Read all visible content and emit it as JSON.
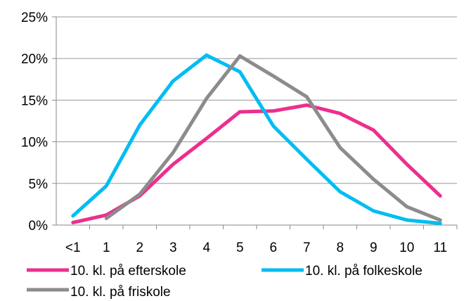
{
  "chart_data": {
    "type": "line",
    "categories": [
      "<1",
      "1",
      "2",
      "3",
      "4",
      "5",
      "6",
      "7",
      "8",
      "9",
      "10",
      "11"
    ],
    "y_ticks": [
      "0%",
      "5%",
      "10%",
      "15%",
      "20%",
      "25%"
    ],
    "ylim": [
      0,
      25
    ],
    "grid": true,
    "legend_placement": "bottom",
    "series": [
      {
        "name": "10. kl. på efterskole",
        "color": "#ec2f8e",
        "values": [
          0.3,
          1.2,
          3.5,
          7.3,
          10.4,
          13.6,
          13.7,
          14.4,
          13.4,
          11.4,
          7.3,
          3.5
        ]
      },
      {
        "name": "10. kl. på folkeskole",
        "color": "#00bdf2",
        "values": [
          1.1,
          4.7,
          12.0,
          17.3,
          20.4,
          18.4,
          11.9,
          7.9,
          4.0,
          1.7,
          0.6,
          0.2
        ]
      },
      {
        "name": "10. kl. på friskole",
        "color": "#8c8c8c",
        "values": [
          null,
          0.8,
          3.7,
          8.7,
          15.2,
          20.3,
          17.9,
          15.4,
          9.3,
          5.5,
          2.2,
          0.6
        ]
      }
    ]
  }
}
